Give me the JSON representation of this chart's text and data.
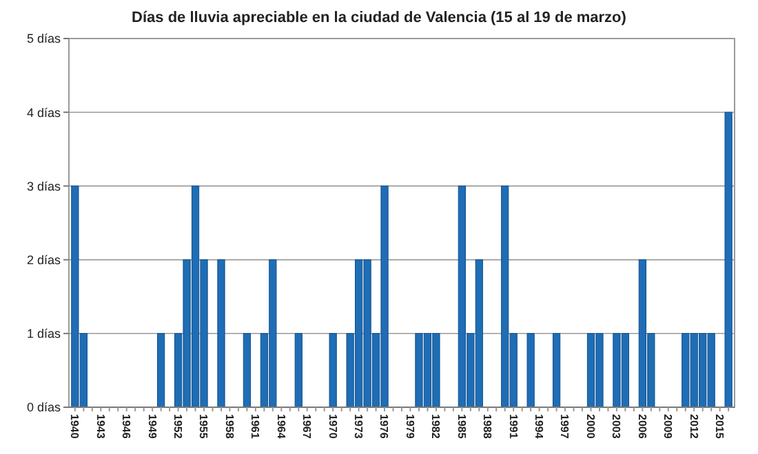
{
  "chart_data": {
    "type": "bar",
    "title": "Días de lluvia apreciable en la ciudad de Valencia (15 al 19 de marzo)",
    "categories": [
      "1940",
      null,
      null,
      "1943",
      null,
      null,
      "1946",
      null,
      null,
      "1949",
      null,
      null,
      "1952",
      null,
      null,
      "1955",
      null,
      null,
      "1958",
      null,
      null,
      "1961",
      null,
      null,
      "1964",
      null,
      null,
      "1967",
      null,
      null,
      "1970",
      null,
      null,
      "1973",
      null,
      null,
      "1976",
      null,
      null,
      "1979",
      null,
      null,
      "1982",
      null,
      null,
      "1985",
      null,
      null,
      "1988",
      null,
      null,
      "1991",
      null,
      null,
      "1994",
      null,
      null,
      "1997",
      null,
      null,
      "2000",
      null,
      null,
      "2003",
      null,
      null,
      "2006",
      null,
      null,
      "2009",
      null,
      null,
      "2012",
      null,
      null,
      "2015",
      null
    ],
    "values": [
      3,
      1,
      0,
      0,
      0,
      0,
      0,
      0,
      0,
      0,
      1,
      0,
      1,
      2,
      3,
      2,
      0,
      2,
      0,
      0,
      1,
      0,
      1,
      2,
      0,
      0,
      1,
      0,
      0,
      0,
      1,
      0,
      1,
      2,
      2,
      1,
      3,
      0,
      0,
      0,
      1,
      1,
      1,
      0,
      0,
      3,
      1,
      2,
      0,
      0,
      3,
      1,
      0,
      1,
      0,
      0,
      1,
      0,
      0,
      0,
      1,
      1,
      0,
      1,
      1,
      0,
      2,
      1,
      0,
      0,
      0,
      1,
      1,
      1,
      1,
      0,
      4
    ],
    "color": "#1f6db5",
    "ylim": [
      0,
      5
    ],
    "yticks": [
      {
        "value": 0,
        "label": "0 días"
      },
      {
        "value": 1,
        "label": "1 días"
      },
      {
        "value": 2,
        "label": "2 días"
      },
      {
        "value": 3,
        "label": "3 días"
      },
      {
        "value": 4,
        "label": "4 días"
      },
      {
        "value": 5,
        "label": "5 días"
      }
    ],
    "grid": "y"
  }
}
